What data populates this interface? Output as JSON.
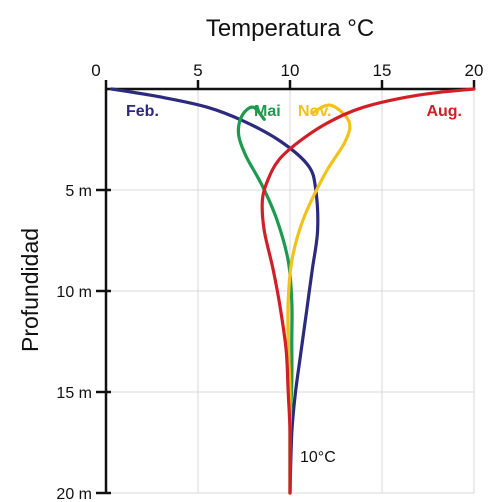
{
  "chart_data": {
    "type": "line",
    "title": "Temperatura °C",
    "xlabel": "",
    "ylabel": "Profundidad",
    "x_axis_position": "top",
    "xlim": [
      0,
      20
    ],
    "ylim": [
      0,
      20
    ],
    "y_inverted": true,
    "grid": true,
    "x_ticks": [
      "0",
      "5",
      "10",
      "15",
      "20"
    ],
    "x_tick_values": [
      0,
      5,
      10,
      15,
      20
    ],
    "y_ticks": [
      "5 m",
      "10 m",
      "15 m",
      "20 m"
    ],
    "y_tick_values": [
      5,
      10,
      15,
      20
    ],
    "annotation": "10°C",
    "series": [
      {
        "name": "Feb.",
        "color": "#2b2a7c",
        "points": [
          [
            0.3,
            0
          ],
          [
            3,
            0.4
          ],
          [
            5.5,
            0.9
          ],
          [
            7.5,
            1.6
          ],
          [
            9.5,
            2.6
          ],
          [
            11,
            3.8
          ],
          [
            11.4,
            5
          ],
          [
            11.5,
            7
          ],
          [
            11.2,
            9
          ],
          [
            10.9,
            11
          ],
          [
            10.6,
            13
          ],
          [
            10.3,
            15
          ],
          [
            10.1,
            17
          ],
          [
            10,
            20
          ]
        ]
      },
      {
        "name": "Mai",
        "color": "#1e9a4e",
        "points": [
          [
            8.6,
            1.5
          ],
          [
            8,
            0.9
          ],
          [
            7.4,
            1.3
          ],
          [
            7.2,
            2.2
          ],
          [
            7.6,
            3.3
          ],
          [
            8.5,
            4.8
          ],
          [
            9.3,
            6.5
          ],
          [
            9.9,
            8.5
          ],
          [
            10.1,
            10.5
          ],
          [
            10.1,
            12.5
          ],
          [
            10.1,
            14.5
          ],
          [
            10,
            17
          ],
          [
            10,
            20
          ]
        ]
      },
      {
        "name": "Nov.",
        "color": "#f2c21b",
        "points": [
          [
            11.2,
            1.2
          ],
          [
            12.2,
            0.8
          ],
          [
            13.2,
            1.6
          ],
          [
            13,
            2.6
          ],
          [
            11.9,
            4.2
          ],
          [
            10.7,
            6.5
          ],
          [
            10.1,
            8.5
          ],
          [
            9.9,
            10.5
          ],
          [
            9.9,
            12.5
          ],
          [
            10,
            15
          ],
          [
            10,
            17
          ],
          [
            10,
            20
          ]
        ]
      },
      {
        "name": "Aug.",
        "color": "#d11f27",
        "points": [
          [
            20,
            0
          ],
          [
            17,
            0.3
          ],
          [
            14,
            0.9
          ],
          [
            12,
            1.7
          ],
          [
            10.5,
            2.6
          ],
          [
            9.4,
            3.5
          ],
          [
            8.8,
            4.5
          ],
          [
            8.5,
            5.5
          ],
          [
            8.6,
            7
          ],
          [
            9.1,
            9
          ],
          [
            9.5,
            11
          ],
          [
            9.8,
            13
          ],
          [
            9.9,
            15
          ],
          [
            10,
            17
          ],
          [
            10,
            20
          ]
        ]
      }
    ]
  }
}
